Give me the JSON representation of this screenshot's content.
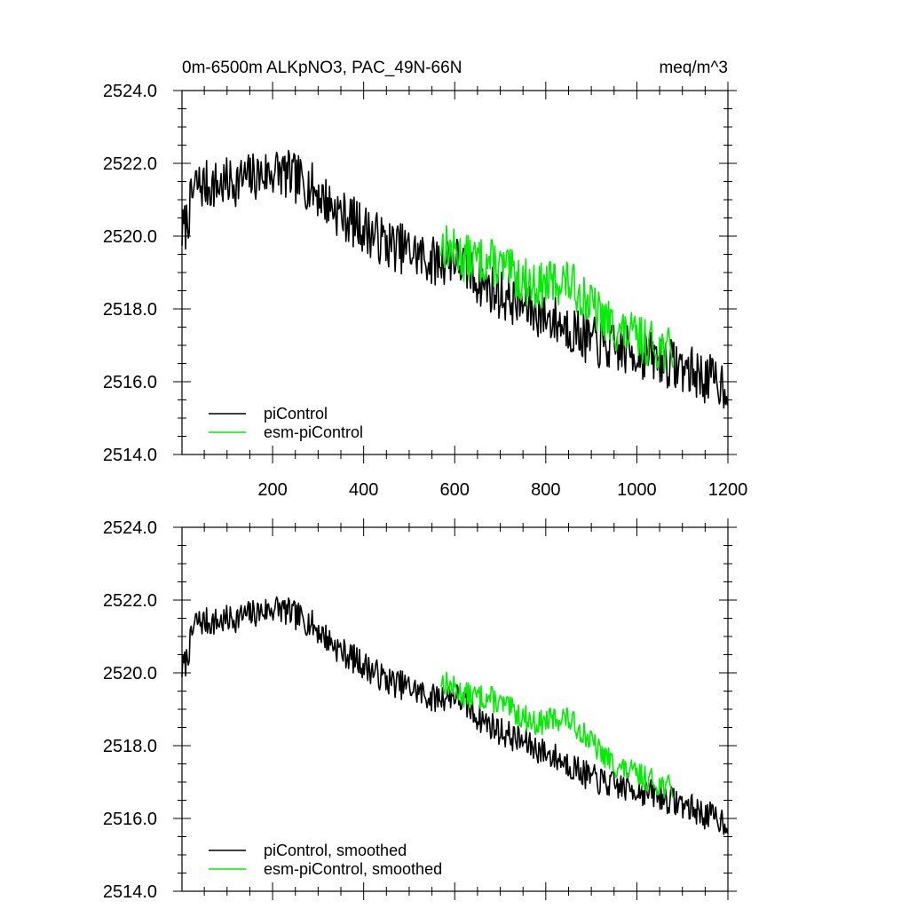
{
  "chart_data": [
    {
      "type": "line",
      "title": "0m-6500m ALKpNO3, PAC_49N-66N",
      "units": "meq/m^3",
      "xlabel": "",
      "ylabel": "",
      "xlim": [
        1,
        1200
      ],
      "ylim": [
        2514,
        2524
      ],
      "xticks": [
        200,
        400,
        600,
        800,
        1000,
        1200
      ],
      "xtick_labels": [
        "200",
        "400",
        "600",
        "800",
        "1000",
        "1200"
      ],
      "yticks": [
        2514,
        2516,
        2518,
        2520,
        2522,
        2524
      ],
      "ytick_labels": [
        "2514.0",
        "2516.0",
        "2518.0",
        "2520.0",
        "2522.0",
        "2524.0"
      ],
      "legend_position": "bottom-left",
      "series": [
        {
          "name": "piControl",
          "color": "#000000",
          "x_range": [
            1,
            1200
          ],
          "anchors": [
            [
              1,
              2520.1
            ],
            [
              10,
              2520.3
            ],
            [
              30,
              2521.4
            ],
            [
              80,
              2521.4
            ],
            [
              150,
              2521.6
            ],
            [
              210,
              2521.8
            ],
            [
              280,
              2521.4
            ],
            [
              350,
              2520.6
            ],
            [
              390,
              2520.3
            ],
            [
              450,
              2519.8
            ],
            [
              500,
              2519.6
            ],
            [
              550,
              2519.3
            ],
            [
              600,
              2519.4
            ],
            [
              650,
              2518.8
            ],
            [
              700,
              2518.4
            ],
            [
              750,
              2518.1
            ],
            [
              800,
              2517.8
            ],
            [
              850,
              2517.5
            ],
            [
              900,
              2517.1
            ],
            [
              950,
              2516.9
            ],
            [
              1000,
              2516.8
            ],
            [
              1050,
              2516.6
            ],
            [
              1100,
              2516.4
            ],
            [
              1150,
              2516.1
            ],
            [
              1200,
              2515.9
            ]
          ],
          "noise": 0.7,
          "seed": 7
        },
        {
          "name": "esm-piControl",
          "color": "#00ee00",
          "x_range": [
            570,
            1080
          ],
          "anchors": [
            [
              570,
              2519.8
            ],
            [
              620,
              2519.4
            ],
            [
              680,
              2519.3
            ],
            [
              720,
              2519.0
            ],
            [
              780,
              2518.6
            ],
            [
              840,
              2518.8
            ],
            [
              880,
              2518.4
            ],
            [
              920,
              2517.8
            ],
            [
              960,
              2517.4
            ],
            [
              1000,
              2517.2
            ],
            [
              1040,
              2517.0
            ],
            [
              1080,
              2516.8
            ]
          ],
          "noise": 0.65,
          "seed": 13
        }
      ]
    },
    {
      "type": "line",
      "title": "",
      "xlabel": "",
      "ylabel": "",
      "xlim": [
        1,
        1200
      ],
      "ylim": [
        2514,
        2524
      ],
      "xticks": [
        200,
        400,
        600,
        800,
        1000,
        1200
      ],
      "yticks": [
        2514,
        2516,
        2518,
        2520,
        2522,
        2524
      ],
      "ytick_labels": [
        "2514.0",
        "2516.0",
        "2518.0",
        "2520.0",
        "2522.0",
        "2524.0"
      ],
      "legend_position": "bottom-left",
      "series": [
        {
          "name": "piControl, smoothed",
          "color": "#000000",
          "x_range": [
            1,
            1200
          ],
          "anchors": [
            [
              1,
              2520.1
            ],
            [
              10,
              2520.3
            ],
            [
              30,
              2521.4
            ],
            [
              80,
              2521.4
            ],
            [
              150,
              2521.6
            ],
            [
              210,
              2521.8
            ],
            [
              280,
              2521.4
            ],
            [
              350,
              2520.6
            ],
            [
              390,
              2520.3
            ],
            [
              450,
              2519.8
            ],
            [
              500,
              2519.6
            ],
            [
              550,
              2519.3
            ],
            [
              600,
              2519.4
            ],
            [
              650,
              2518.8
            ],
            [
              700,
              2518.4
            ],
            [
              750,
              2518.1
            ],
            [
              800,
              2517.8
            ],
            [
              850,
              2517.5
            ],
            [
              900,
              2517.1
            ],
            [
              950,
              2516.9
            ],
            [
              1000,
              2516.8
            ],
            [
              1050,
              2516.6
            ],
            [
              1100,
              2516.4
            ],
            [
              1150,
              2516.1
            ],
            [
              1200,
              2515.9
            ]
          ],
          "noise": 0.4,
          "seed": 7
        },
        {
          "name": "esm-piControl, smoothed",
          "color": "#00ee00",
          "x_range": [
            570,
            1080
          ],
          "anchors": [
            [
              570,
              2519.8
            ],
            [
              620,
              2519.4
            ],
            [
              680,
              2519.3
            ],
            [
              720,
              2519.0
            ],
            [
              780,
              2518.6
            ],
            [
              840,
              2518.8
            ],
            [
              880,
              2518.4
            ],
            [
              920,
              2517.8
            ],
            [
              960,
              2517.4
            ],
            [
              1000,
              2517.2
            ],
            [
              1040,
              2517.0
            ],
            [
              1080,
              2516.8
            ]
          ],
          "noise": 0.35,
          "seed": 13
        }
      ]
    }
  ]
}
